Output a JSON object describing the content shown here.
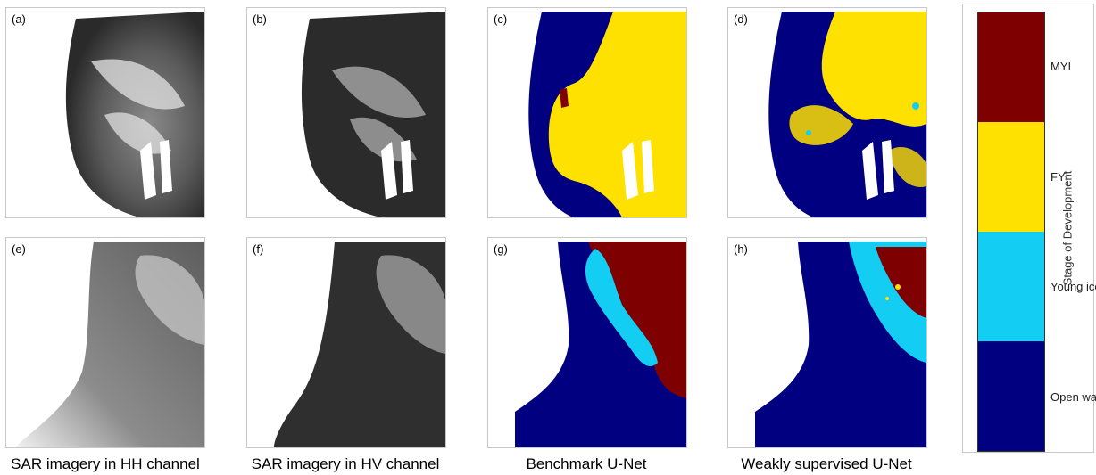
{
  "panels": [
    {
      "label": "(a)"
    },
    {
      "label": "(b)"
    },
    {
      "label": "(c)"
    },
    {
      "label": "(d)"
    },
    {
      "label": "(e)"
    },
    {
      "label": "(f)"
    },
    {
      "label": "(g)"
    },
    {
      "label": "(h)"
    }
  ],
  "captions": {
    "hh": "SAR imagery in HH channel",
    "hv": "SAR imagery in HV channel",
    "benchmark": "Benchmark U-Net",
    "weak": "Weakly supervised U-Net"
  },
  "colorbar": {
    "title": "Stage of Development",
    "classes": [
      {
        "label": "MYI",
        "color": "#7f0000"
      },
      {
        "label": "FYI",
        "color": "#ffe100"
      },
      {
        "label": "Young ice",
        "color": "#13cdf2"
      },
      {
        "label": "Open water",
        "color": "#000080"
      }
    ]
  }
}
